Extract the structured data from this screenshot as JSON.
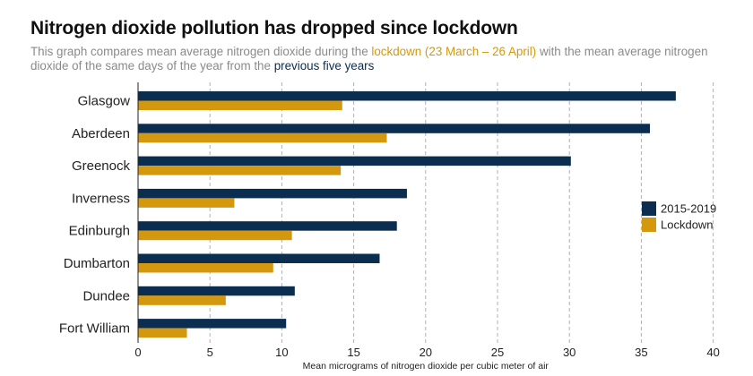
{
  "header": {
    "title": "Nitrogen dioxide pollution has dropped since lockdown",
    "subtitle_part1": "This graph compares mean average nitrogen dioxide during the ",
    "subtitle_highlight1": "lockdown (23 March – 26 April)",
    "subtitle_part2": " with the mean average nitrogen dioxide of the same days of the year from the ",
    "subtitle_highlight2": "previous five years"
  },
  "colors": {
    "series_2015_2019": "#0b2d50",
    "series_lockdown": "#d4980f",
    "grid": "#b0b0b0"
  },
  "chart_data": {
    "type": "bar",
    "orientation": "horizontal",
    "categories": [
      "Glasgow",
      "Aberdeen",
      "Greenock",
      "Inverness",
      "Edinburgh",
      "Dumbarton",
      "Dundee",
      "Fort William"
    ],
    "series": [
      {
        "name": "2015-2019",
        "values": [
          37.4,
          35.6,
          30.1,
          18.7,
          18.0,
          16.8,
          10.9,
          10.3
        ]
      },
      {
        "name": "Lockdown",
        "values": [
          14.2,
          17.3,
          14.1,
          6.7,
          10.7,
          9.4,
          6.1,
          3.4
        ]
      }
    ],
    "title": "Nitrogen dioxide pollution has dropped since lockdown",
    "xlabel": "Mean micrograms of nitrogen dioxide per cubic meter of air",
    "ylabel": "",
    "xlim": [
      0,
      40
    ],
    "xticks": [
      0,
      5,
      10,
      15,
      20,
      25,
      30,
      35,
      40
    ],
    "grid": "vertical dashed",
    "legend_position": "right"
  }
}
